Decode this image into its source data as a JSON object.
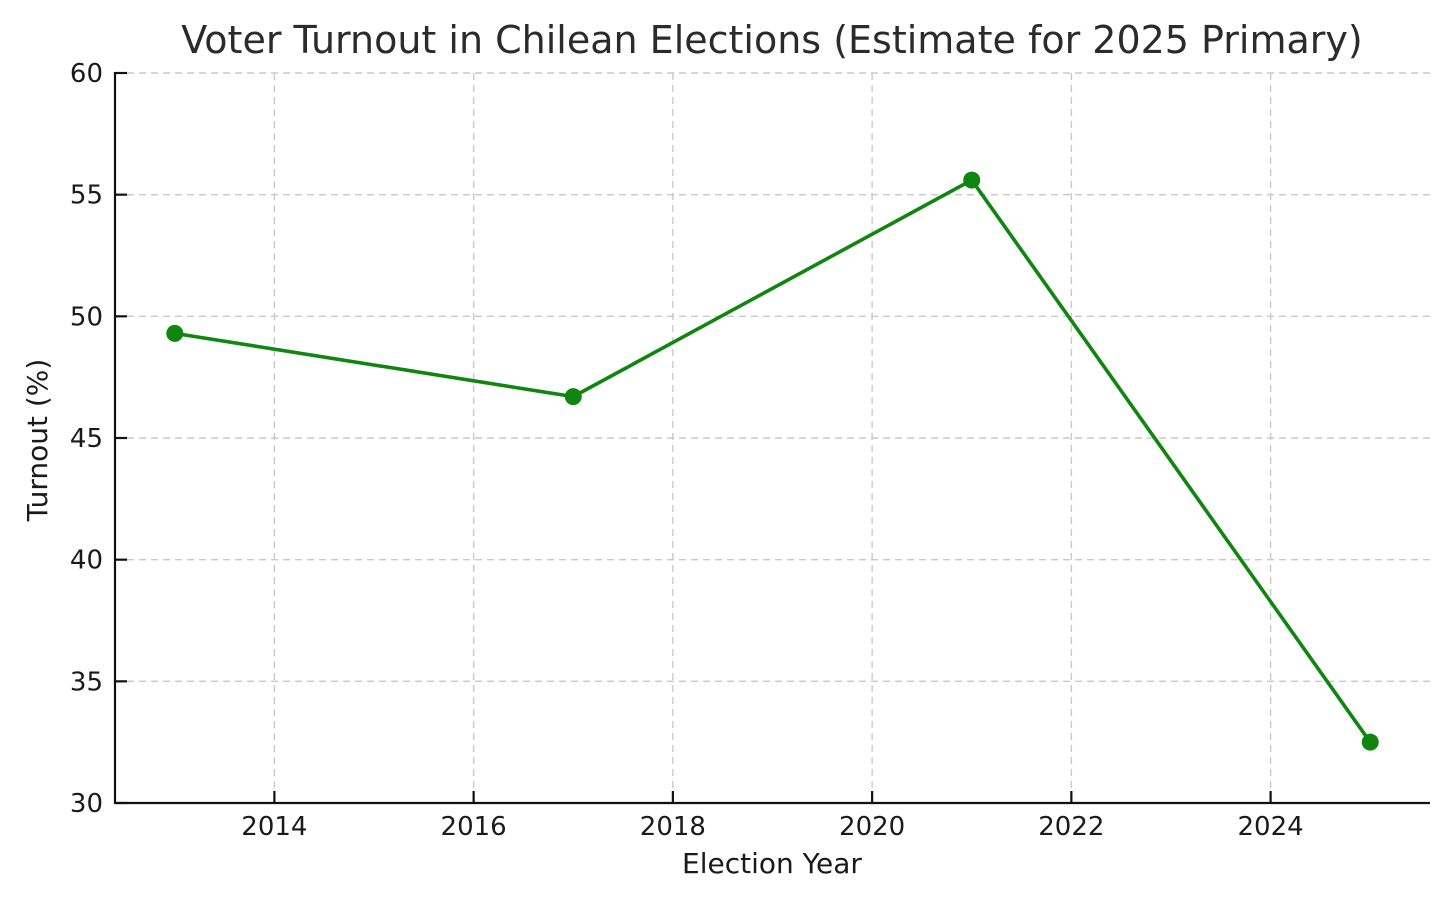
{
  "figure": {
    "background": "#ffffff"
  },
  "chart_data": {
    "type": "line",
    "title": "Voter Turnout in Chilean Elections (Estimate for 2025 Primary)",
    "xlabel": "Election Year",
    "ylabel": "Turnout (%)",
    "series": [
      {
        "name": "Turnout (%)",
        "x": [
          2013,
          2017,
          2021,
          2025
        ],
        "values": [
          49.3,
          46.7,
          55.6,
          32.5
        ],
        "color": "#108510",
        "marker": "circle",
        "marker_size": 8.5,
        "line_width": 3.6
      }
    ],
    "xlim": [
      2012.4,
      2025.6
    ],
    "ylim": [
      30,
      60
    ],
    "xticks": [
      2014,
      2016,
      2018,
      2020,
      2022,
      2024
    ],
    "yticks": [
      30,
      35,
      40,
      45,
      50,
      55,
      60
    ],
    "grid": true,
    "grid_style": "dashed",
    "grid_color": "#c9c9c9",
    "spine_color": "#111111",
    "text_color": "#1a1a1a",
    "title_color": "#2b2b2b",
    "legend": "none",
    "tick_direction": "in"
  }
}
